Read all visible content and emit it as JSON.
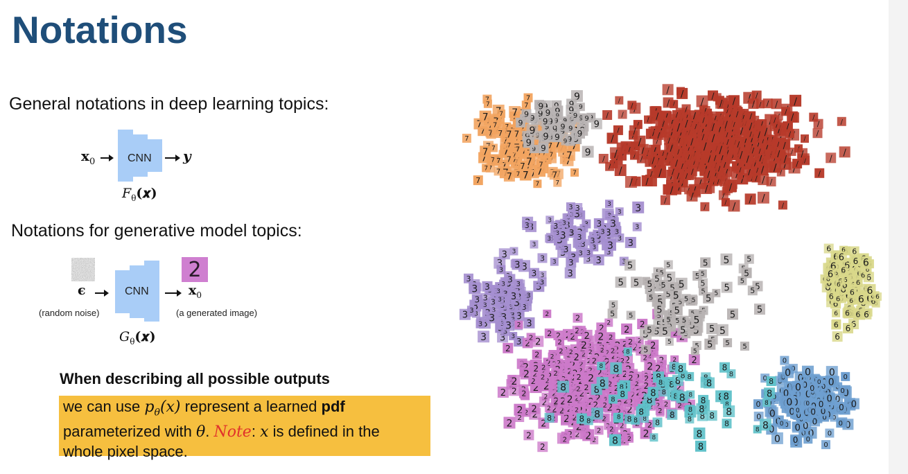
{
  "slide": {
    "title": "Notations",
    "section1": {
      "heading": "General notations in deep learning topics:",
      "input_symbol": "x",
      "input_subscript": "0",
      "block_label": "CNN",
      "output_symbol": "y",
      "function_label": "F",
      "function_subscript": "θ",
      "function_arg": "(𝒙)"
    },
    "section2": {
      "heading": "Notations for generative model topics:",
      "input_symbol": "ϵ",
      "input_caption": "(random noise)",
      "block_label": "CNN",
      "output_symbol": "x",
      "output_subscript": "0",
      "output_caption": "(a generated image)",
      "output_digit": "2",
      "function_label": "G",
      "function_subscript": "θ",
      "function_arg": "(𝒙)"
    },
    "section3": {
      "heading": "When describing all possible outputs",
      "callout": {
        "part1": "we can use ",
        "pdf_symbol": "p",
        "pdf_subscript": "θ",
        "pdf_arg": "(x)",
        "part2": " represent a learned ",
        "bold_word": "pdf",
        "part3": "parameterized with ",
        "theta": "θ",
        "period": ". ",
        "note_label": "Note",
        "colon": ": ",
        "x_symbol": "x",
        "part4": " is defined in the",
        "part5": "whole pixel space."
      }
    },
    "embedding_image": {
      "icon": "tsne-digit-embedding-image",
      "cluster_colors": {
        "one": "#b73a2a",
        "seven": "#f2a460",
        "two": "#cc79c9",
        "zero": "#6e9fd0",
        "six": "#d9d88a",
        "three": "#a58fd0",
        "gray": "#b8b3b3",
        "teal": "#5fc1c9"
      }
    },
    "colors": {
      "title": "#1f4e79",
      "cnn_block": "#a9cdf7",
      "callout_bg": "#f6bf3f",
      "note": "#e0322b"
    }
  }
}
